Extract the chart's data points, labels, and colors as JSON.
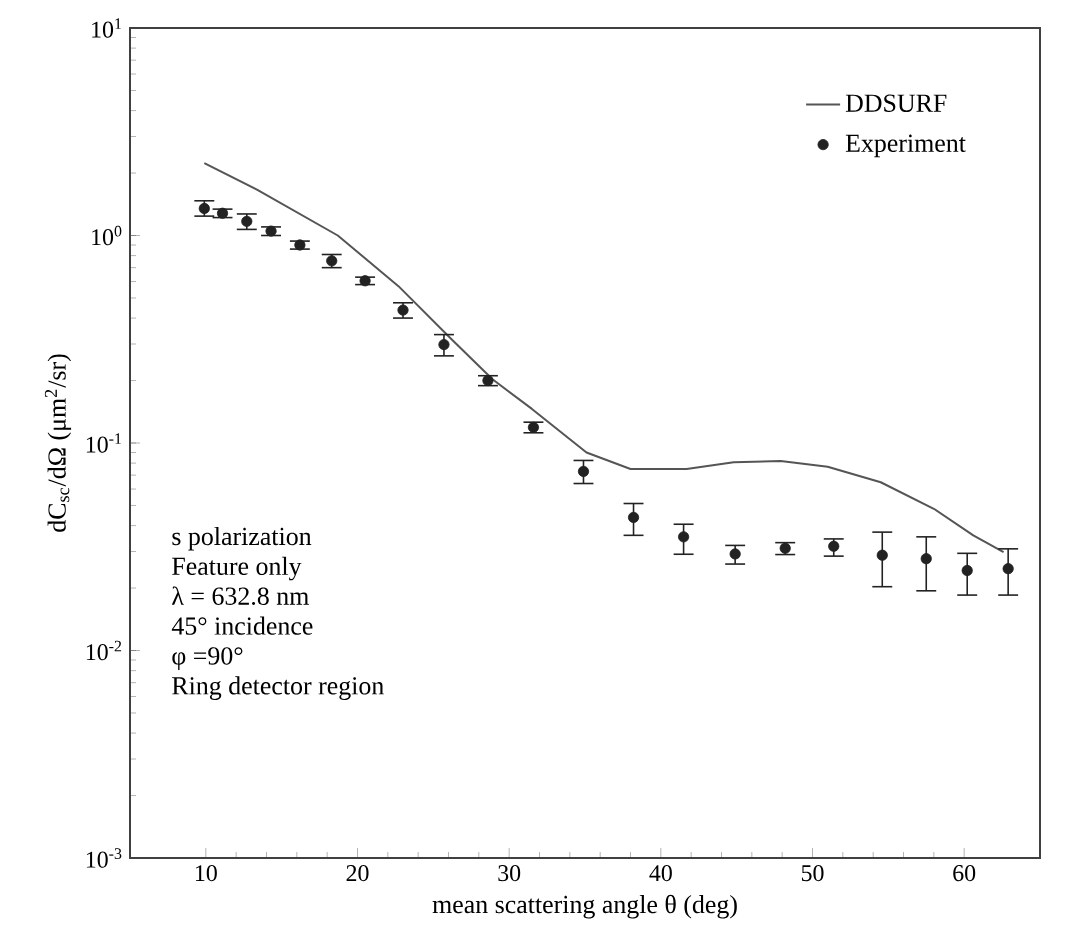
{
  "chart_data": {
    "type": "scatter",
    "xlabel": "mean scattering angle θ (deg)",
    "ylabel": "dC$_{sc}$/dΩ (μm$^{2}$/sr)",
    "log": "y",
    "xlim": [
      5,
      65
    ],
    "ylim": [
      0.001,
      10
    ],
    "xticks": [
      10,
      20,
      30,
      40,
      50,
      60
    ],
    "yticks": [
      {
        "value": 0.001,
        "label": "10$^{-3}$"
      },
      {
        "value": 0.01,
        "label": "10$^{-2}$"
      },
      {
        "value": 0.1,
        "label": "10$^{-1}$"
      },
      {
        "value": 1,
        "label": "10$^{0}$"
      },
      {
        "value": 10,
        "label": "10$^{1}$"
      }
    ],
    "grid": false,
    "legend": "top right",
    "series": [
      {
        "name": "DDSURF",
        "type": "line",
        "color": "#555555",
        "marker": "none",
        "line_style": "solid",
        "x": [
          9.9,
          13.4,
          18.7,
          22.7,
          26.2,
          28.9,
          31.5,
          35.1,
          38.0,
          41.7,
          44.8,
          47.9,
          51.0,
          54.5,
          58.0,
          60.6,
          62.6
        ],
        "values": [
          2.23,
          1.66,
          1.0,
          0.57,
          0.316,
          0.203,
          0.146,
          0.09,
          0.075,
          0.075,
          0.0807,
          0.0818,
          0.0769,
          0.0647,
          0.0482,
          0.0359,
          0.0298
        ]
      },
      {
        "name": "Experiment",
        "color": "#222222",
        "marker": "circle",
        "x": [
          9.9,
          11.1,
          12.7,
          14.3,
          16.2,
          18.3,
          20.5,
          23.0,
          25.7,
          28.6,
          31.6,
          34.9,
          38.2,
          41.5,
          44.9,
          48.2,
          51.4,
          54.6,
          57.5,
          60.2,
          62.9
        ],
        "values": [
          1.35,
          1.28,
          1.17,
          1.05,
          0.9,
          0.755,
          0.605,
          0.437,
          0.298,
          0.2,
          0.119,
          0.073,
          0.0438,
          0.0353,
          0.0292,
          0.0311,
          0.0318,
          0.0288,
          0.0277,
          0.0243,
          0.0248
        ],
        "errors": [
          [
            1.24,
            1.47
          ],
          [
            1.22,
            1.34
          ],
          [
            1.07,
            1.27
          ],
          [
            1.0,
            1.1
          ],
          [
            0.86,
            0.94
          ],
          [
            0.7,
            0.81
          ],
          [
            0.58,
            0.63
          ],
          [
            0.4,
            0.474
          ],
          [
            0.263,
            0.333
          ],
          [
            0.189,
            0.211
          ],
          [
            0.112,
            0.126
          ],
          [
            0.0638,
            0.0824
          ],
          [
            0.0359,
            0.0511
          ],
          [
            0.0291,
            0.0406
          ],
          [
            0.0261,
            0.0321
          ],
          [
            0.029,
            0.0331
          ],
          [
            0.0285,
            0.0345
          ],
          [
            0.0203,
            0.0372
          ],
          [
            0.0194,
            0.0353
          ],
          [
            0.0185,
            0.0294
          ],
          [
            0.0185,
            0.0309
          ]
        ]
      }
    ],
    "annotations": [
      "s polarization",
      "Feature only",
      "λ = 632.8 nm",
      "45° incidence",
      "φ =90°",
      "Ring detector region"
    ]
  }
}
